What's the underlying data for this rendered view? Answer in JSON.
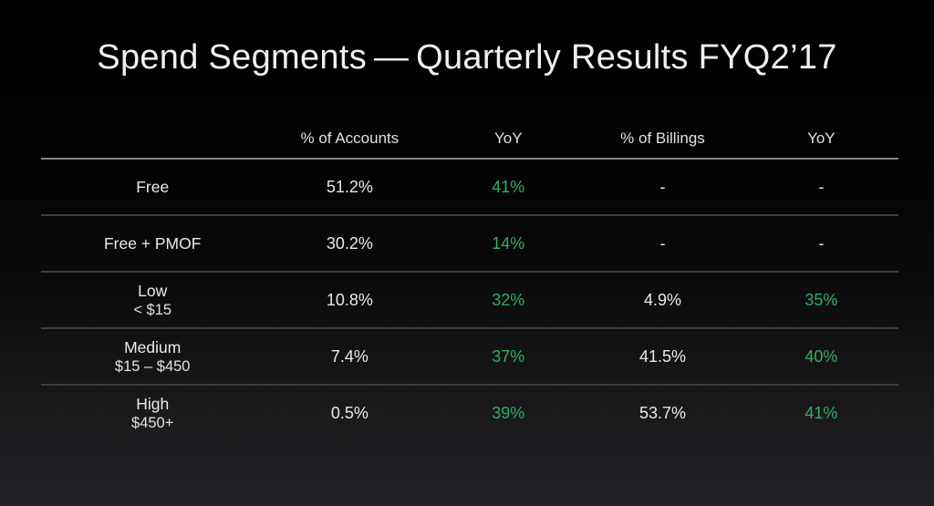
{
  "slide": {
    "title": "Spend Segments — Quarterly Results FYQ2’17"
  },
  "colors": {
    "background": "#000000",
    "text": "#e9e9e9",
    "positive_green": "#2fae63",
    "header_rule": "#848487",
    "row_rule": "#3e3e42"
  },
  "chart_data": {
    "type": "table",
    "title": "Spend Segments — Quarterly Results FYQ2’17",
    "columns": [
      "",
      "% of Accounts",
      "YoY",
      "% of Billings",
      "YoY"
    ],
    "rows": [
      {
        "label": "Free",
        "sublabel": "",
        "accounts": "51.2%",
        "accounts_yoy": "41%",
        "billings": "-",
        "billings_yoy": "-"
      },
      {
        "label": "Free + PMOF",
        "sublabel": "",
        "accounts": "30.2%",
        "accounts_yoy": "14%",
        "billings": "-",
        "billings_yoy": "-"
      },
      {
        "label": "Low",
        "sublabel": "< $15",
        "accounts": "10.8%",
        "accounts_yoy": "32%",
        "billings": "4.9%",
        "billings_yoy": "35%"
      },
      {
        "label": "Medium",
        "sublabel": "$15 – $450",
        "accounts": "7.4%",
        "accounts_yoy": "37%",
        "billings": "41.5%",
        "billings_yoy": "40%"
      },
      {
        "label": "High",
        "sublabel": "$450+",
        "accounts": "0.5%",
        "accounts_yoy": "39%",
        "billings": "53.7%",
        "billings_yoy": "41%"
      }
    ]
  }
}
